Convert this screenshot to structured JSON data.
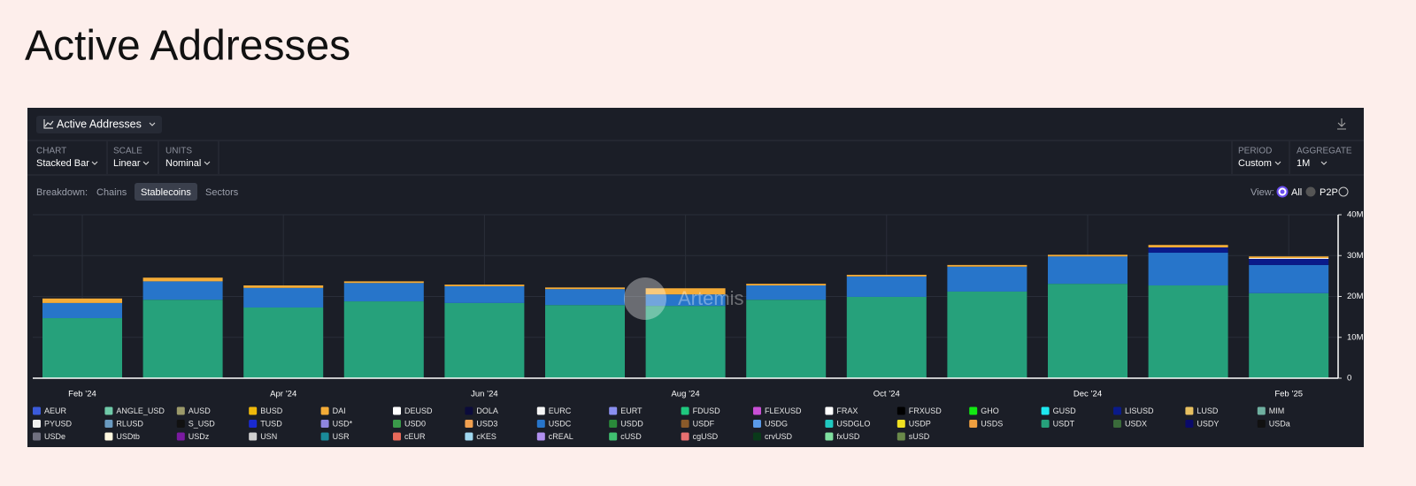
{
  "heading": "Active Addresses",
  "controls": {
    "chart_label": "CHART",
    "chart_value": "Stacked Bar",
    "scale_label": "SCALE",
    "scale_value": "Linear",
    "units_label": "UNITS",
    "units_value": "Nominal",
    "period_label": "PERIOD",
    "period_value": "Custom",
    "aggregate_label": "AGGREGATE",
    "aggregate_value": "1M",
    "breakdown": "Breakdown:",
    "chains": "Chains",
    "stablecoins": "Stablecoins",
    "sectors": "Sectors",
    "view": "View:",
    "all": "All",
    "p2p": "P2P",
    "watermark": "Artemis"
  },
  "chart_data": {
    "type": "bar",
    "stacked": true,
    "title": "Active Addresses",
    "categories": [
      "Feb ’24",
      null,
      "Apr ’24",
      null,
      "Jun ’24",
      null,
      "Aug ’24",
      null,
      "Oct ’24",
      null,
      "Dec ’24",
      null,
      "Feb ’25"
    ],
    "ylim": [
      0,
      40000000
    ],
    "yticks": [
      0,
      {
        "value": 10000000,
        "label": "10M"
      },
      {
        "value": 20000000,
        "label": "20M"
      },
      {
        "value": 30000000,
        "label": "30M"
      },
      {
        "value": 40000000,
        "label": "40M"
      }
    ],
    "grid": true,
    "series": [
      {
        "name": "AEUR",
        "color": "#3b5bdb",
        "values": [
          0,
          0,
          0,
          0,
          0,
          0,
          0,
          0,
          0,
          0,
          0,
          0,
          0
        ]
      },
      {
        "name": "ANGLE_USD",
        "color": "#6fc9a8",
        "values": [
          0,
          0,
          0,
          0,
          0,
          0,
          0,
          0,
          0,
          0,
          0,
          0,
          0
        ]
      },
      {
        "name": "AUSD",
        "color": "#9c9a6a",
        "values": [
          0,
          0,
          0,
          0,
          0,
          0,
          0,
          0,
          0,
          0,
          0,
          0,
          0
        ]
      },
      {
        "name": "BUSD",
        "color": "#f0b90b",
        "values": [
          0,
          0,
          0,
          0,
          0,
          0,
          0,
          0,
          0,
          0,
          0,
          0,
          0
        ]
      },
      {
        "name": "DAI",
        "color": "#f5ac37",
        "values": [
          1100000,
          900000,
          600000,
          400000,
          400000,
          400000,
          1500000,
          400000,
          400000,
          400000,
          400000,
          600000,
          400000
        ]
      },
      {
        "name": "DEUSD",
        "color": "#ffffff",
        "values": [
          0,
          0,
          0,
          0,
          0,
          0,
          0,
          0,
          0,
          0,
          0,
          0,
          0
        ]
      },
      {
        "name": "DOLA",
        "color": "#0b0b3b",
        "values": [
          0,
          0,
          0,
          0,
          0,
          0,
          0,
          0,
          0,
          0,
          0,
          0,
          0
        ]
      },
      {
        "name": "EURC",
        "color": "#f5f5f5",
        "values": [
          0,
          0,
          0,
          0,
          0,
          0,
          0,
          0,
          0,
          0,
          0,
          0,
          0
        ]
      },
      {
        "name": "EURT",
        "color": "#8a8ff0",
        "values": [
          0,
          0,
          0,
          0,
          0,
          0,
          0,
          0,
          0,
          0,
          0,
          0,
          0
        ]
      },
      {
        "name": "FDUSD",
        "color": "#1fc77e",
        "values": [
          0,
          0,
          0,
          0,
          0,
          0,
          0,
          0,
          0,
          0,
          0,
          0,
          0
        ]
      },
      {
        "name": "FLEXUSD",
        "color": "#c94fd6",
        "values": [
          0,
          0,
          0,
          0,
          0,
          0,
          0,
          0,
          0,
          0,
          0,
          0,
          0
        ]
      },
      {
        "name": "FRAX",
        "color": "#ffffff",
        "values": [
          0,
          0,
          0,
          0,
          0,
          0,
          0,
          0,
          0,
          0,
          0,
          0,
          200000
        ]
      },
      {
        "name": "FRXUSD",
        "color": "#000000",
        "values": [
          0,
          0,
          0,
          0,
          0,
          0,
          0,
          0,
          0,
          0,
          0,
          0,
          0
        ]
      },
      {
        "name": "GHO",
        "color": "#12e812",
        "values": [
          0,
          0,
          0,
          0,
          0,
          0,
          0,
          0,
          0,
          0,
          0,
          0,
          0
        ]
      },
      {
        "name": "GUSD",
        "color": "#1ee8f0",
        "values": [
          0,
          0,
          0,
          0,
          0,
          0,
          0,
          0,
          0,
          0,
          0,
          0,
          0
        ]
      },
      {
        "name": "LISUSD",
        "color": "#0a1a8a",
        "values": [
          0,
          0,
          0,
          0,
          0,
          0,
          0,
          0,
          0,
          0,
          0,
          1300000,
          1500000
        ]
      },
      {
        "name": "LUSD",
        "color": "#e8c060",
        "values": [
          0,
          0,
          0,
          0,
          0,
          0,
          0,
          0,
          0,
          0,
          0,
          0,
          0
        ]
      },
      {
        "name": "MIM",
        "color": "#6fb0a0",
        "values": [
          0,
          0,
          0,
          0,
          0,
          0,
          0,
          0,
          0,
          0,
          0,
          0,
          0
        ]
      },
      {
        "name": "PYUSD",
        "color": "#f0f0f0",
        "values": [
          0,
          0,
          0,
          0,
          0,
          0,
          0,
          0,
          0,
          0,
          0,
          0,
          0
        ]
      },
      {
        "name": "RLUSD",
        "color": "#6a9ac0",
        "values": [
          0,
          0,
          0,
          0,
          0,
          0,
          0,
          0,
          0,
          0,
          0,
          0,
          0
        ]
      },
      {
        "name": "S_USD",
        "color": "#111111",
        "values": [
          0,
          0,
          0,
          0,
          0,
          0,
          0,
          0,
          0,
          0,
          0,
          0,
          0
        ]
      },
      {
        "name": "TUSD",
        "color": "#1a2ad0",
        "values": [
          0,
          0,
          0,
          0,
          0,
          0,
          0,
          0,
          0,
          0,
          0,
          0,
          0
        ]
      },
      {
        "name": "USD*",
        "color": "#8f86e0",
        "values": [
          0,
          0,
          0,
          0,
          0,
          0,
          0,
          0,
          0,
          0,
          0,
          0,
          0
        ]
      },
      {
        "name": "USD0",
        "color": "#3a9a4a",
        "values": [
          0,
          0,
          0,
          0,
          0,
          0,
          0,
          0,
          0,
          0,
          0,
          0,
          0
        ]
      },
      {
        "name": "USD3",
        "color": "#f0a050",
        "values": [
          0,
          0,
          0,
          0,
          0,
          0,
          0,
          0,
          0,
          0,
          0,
          0,
          0
        ]
      },
      {
        "name": "USDC",
        "color": "#2775ca",
        "values": [
          3700000,
          4500000,
          4800000,
          4500000,
          4100000,
          3900000,
          2800000,
          3500000,
          5000000,
          6100000,
          6700000,
          8000000,
          6900000
        ]
      },
      {
        "name": "USDD",
        "color": "#2a8a3a",
        "values": [
          0,
          0,
          0,
          0,
          0,
          0,
          0,
          0,
          0,
          0,
          0,
          0,
          0
        ]
      },
      {
        "name": "USDF",
        "color": "#8a5a2a",
        "values": [
          0,
          0,
          0,
          0,
          0,
          0,
          0,
          0,
          0,
          0,
          0,
          0,
          0
        ]
      },
      {
        "name": "USDG",
        "color": "#5a9ae8",
        "values": [
          0,
          0,
          0,
          0,
          0,
          0,
          0,
          0,
          0,
          0,
          0,
          0,
          0
        ]
      },
      {
        "name": "USDGLO",
        "color": "#20c8c0",
        "values": [
          0,
          0,
          0,
          0,
          0,
          0,
          0,
          0,
          0,
          0,
          0,
          0,
          0
        ]
      },
      {
        "name": "USDP",
        "color": "#f0e020",
        "values": [
          0,
          0,
          0,
          0,
          0,
          0,
          0,
          0,
          0,
          0,
          0,
          0,
          0
        ]
      },
      {
        "name": "USDS",
        "color": "#f0a040",
        "values": [
          0,
          0,
          0,
          0,
          0,
          0,
          0,
          0,
          0,
          0,
          0,
          0,
          0
        ]
      },
      {
        "name": "USDT",
        "color": "#26a17b",
        "values": [
          14700000,
          19200000,
          17300000,
          18800000,
          18400000,
          17900000,
          17700000,
          19200000,
          19900000,
          21200000,
          23100000,
          22700000,
          20800000
        ]
      },
      {
        "name": "USDX",
        "color": "#3a6a3a",
        "values": [
          0,
          0,
          0,
          0,
          0,
          0,
          0,
          0,
          0,
          0,
          0,
          0,
          0
        ]
      },
      {
        "name": "USDY",
        "color": "#0a0a6a",
        "values": [
          0,
          0,
          0,
          0,
          0,
          0,
          0,
          0,
          0,
          0,
          0,
          0,
          0
        ]
      },
      {
        "name": "USDa",
        "color": "#111111",
        "values": [
          0,
          0,
          0,
          0,
          0,
          0,
          0,
          0,
          0,
          0,
          0,
          0,
          0
        ]
      },
      {
        "name": "USDe",
        "color": "#707080",
        "values": [
          0,
          0,
          0,
          0,
          0,
          0,
          0,
          0,
          0,
          0,
          0,
          0,
          0
        ]
      },
      {
        "name": "USDtb",
        "color": "#fff8e0",
        "values": [
          0,
          0,
          0,
          0,
          0,
          0,
          0,
          0,
          0,
          0,
          0,
          0,
          0
        ]
      },
      {
        "name": "USDz",
        "color": "#7a1aa0",
        "values": [
          0,
          0,
          0,
          0,
          0,
          0,
          0,
          0,
          0,
          0,
          0,
          0,
          0
        ]
      },
      {
        "name": "USN",
        "color": "#d0d0d0",
        "values": [
          0,
          0,
          0,
          0,
          0,
          0,
          0,
          0,
          0,
          0,
          0,
          0,
          0
        ]
      },
      {
        "name": "USR",
        "color": "#1a8a9a",
        "values": [
          0,
          0,
          0,
          0,
          0,
          0,
          0,
          0,
          0,
          0,
          0,
          0,
          0
        ]
      },
      {
        "name": "cEUR",
        "color": "#e86a5a",
        "values": [
          0,
          0,
          0,
          0,
          0,
          0,
          0,
          0,
          0,
          0,
          0,
          0,
          0
        ]
      },
      {
        "name": "cKES",
        "color": "#a0d8f0",
        "values": [
          0,
          0,
          0,
          0,
          0,
          0,
          0,
          0,
          0,
          0,
          0,
          0,
          0
        ]
      },
      {
        "name": "cREAL",
        "color": "#b090f0",
        "values": [
          0,
          0,
          0,
          0,
          0,
          0,
          0,
          0,
          0,
          0,
          0,
          0,
          0
        ]
      },
      {
        "name": "cUSD",
        "color": "#40c070",
        "values": [
          0,
          0,
          0,
          0,
          0,
          0,
          0,
          0,
          0,
          0,
          0,
          0,
          0
        ]
      },
      {
        "name": "cgUSD",
        "color": "#e87070",
        "values": [
          0,
          0,
          0,
          0,
          0,
          0,
          0,
          0,
          0,
          0,
          0,
          0,
          0
        ]
      },
      {
        "name": "crvUSD",
        "color": "#0a3a1a",
        "values": [
          0,
          0,
          0,
          0,
          0,
          0,
          0,
          0,
          0,
          0,
          0,
          0,
          0
        ]
      },
      {
        "name": "fxUSD",
        "color": "#80e0a0",
        "values": [
          0,
          0,
          0,
          0,
          0,
          0,
          0,
          0,
          0,
          0,
          0,
          0,
          0
        ]
      },
      {
        "name": "sUSD",
        "color": "#6a8a4a",
        "values": [
          0,
          0,
          0,
          0,
          0,
          0,
          0,
          0,
          0,
          0,
          0,
          0,
          0
        ]
      }
    ]
  }
}
